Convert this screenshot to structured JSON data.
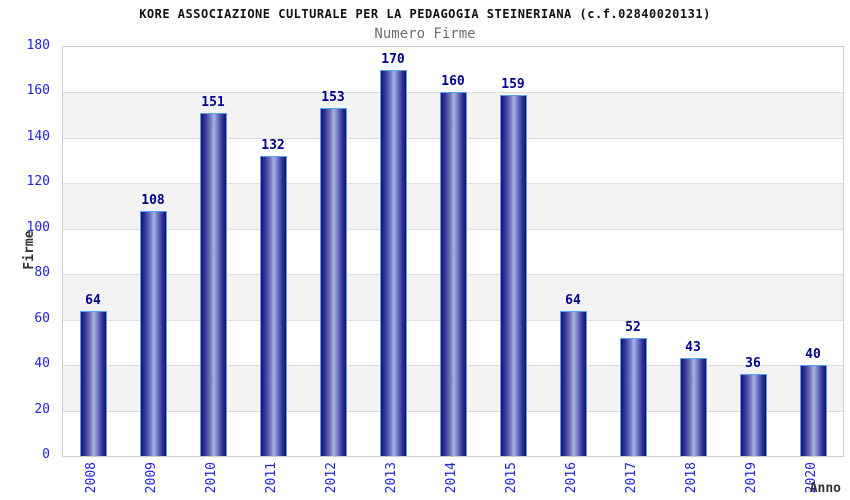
{
  "chart_data": {
    "type": "bar",
    "title": "KORE ASSOCIAZIONE CULTURALE PER LA PEDAGOGIA STEINERIANA (c.f.02840020131)",
    "subtitle": "Numero Firme",
    "xlabel": "Anno",
    "ylabel": "Firme",
    "categories": [
      "2008",
      "2009",
      "2010",
      "2011",
      "2012",
      "2013",
      "2014",
      "2015",
      "2016",
      "2017",
      "2018",
      "2019",
      "2020"
    ],
    "values": [
      64,
      108,
      151,
      132,
      153,
      170,
      160,
      159,
      64,
      52,
      43,
      36,
      40
    ],
    "ylim": [
      0,
      180
    ],
    "ytick_step": 20,
    "ytick_labels": [
      "0",
      "20",
      "40",
      "60",
      "80",
      "100",
      "120",
      "140",
      "160",
      "180"
    ],
    "grid": "horizontal",
    "band_rows": "alternating-gray",
    "legend_position": "none",
    "colors": {
      "bar_dark": "#17176e",
      "bar_mid_dark": "#2a2a90",
      "bar_mid": "#6a73bd",
      "bar_light": "#aab2e2",
      "bar_border": "#55a2f5",
      "value_label": "#00008c",
      "tick_label": "#2222dd",
      "title": "#111111",
      "subtitle": "#6e6e6e",
      "axis_title": "#333333",
      "band": "#f3f3f3",
      "gridline": "#dddddd",
      "plot_border": "#cccccc",
      "background": "#ffffff"
    }
  }
}
